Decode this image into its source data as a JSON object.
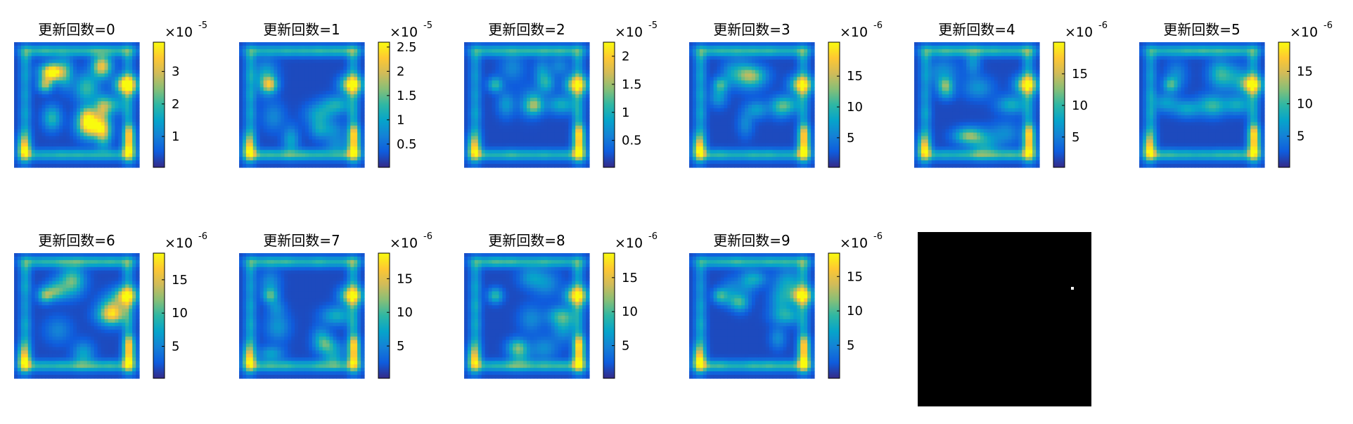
{
  "chart_data": {
    "type": "heatmap",
    "colormap": "parula",
    "colors": {
      "parula": [
        "#352a87",
        "#0f5cdd",
        "#1481d6",
        "#06a4ca",
        "#2eb7a4",
        "#87bf77",
        "#d1bb59",
        "#fec832",
        "#f9fb0e"
      ],
      "background": "#ffffff",
      "axes_border": "#000000",
      "mask_bg": "#000000",
      "mask_dot": "#ffffff"
    },
    "panels": [
      {
        "title": "更新回数=0",
        "exponent_label": "×10",
        "exponent": "-5",
        "clim": [
          0.05,
          3.9
        ],
        "ticks": [
          "1",
          "2",
          "3"
        ],
        "tick_values": [
          1,
          2,
          3
        ],
        "hotspot": 1.0
      },
      {
        "title": "更新回数=1",
        "exponent_label": "×10",
        "exponent": "-5",
        "clim": [
          0.02,
          2.6
        ],
        "ticks": [
          "0.5",
          "1",
          "1.5",
          "2",
          "2.5"
        ],
        "tick_values": [
          0.5,
          1,
          1.5,
          2,
          2.5
        ],
        "hotspot": 0.85
      },
      {
        "title": "更新回数=2",
        "exponent_label": "×10",
        "exponent": "-5",
        "clim": [
          0.02,
          2.25
        ],
        "ticks": [
          "0.5",
          "1",
          "1.5",
          "2"
        ],
        "tick_values": [
          0.5,
          1,
          1.5,
          2
        ],
        "hotspot": 0.8
      },
      {
        "title": "更新回数=3",
        "exponent_label": "×10",
        "exponent": "-6",
        "clim": [
          0.2,
          20.5
        ],
        "ticks": [
          "5",
          "10",
          "15"
        ],
        "tick_values": [
          5,
          10,
          15
        ],
        "hotspot": 0.8
      },
      {
        "title": "更新回数=4",
        "exponent_label": "×10",
        "exponent": "-6",
        "clim": [
          0.2,
          20.0
        ],
        "ticks": [
          "5",
          "10",
          "15"
        ],
        "tick_values": [
          5,
          10,
          15
        ],
        "hotspot": 0.8
      },
      {
        "title": "更新回数=5",
        "exponent_label": "×10",
        "exponent": "-6",
        "clim": [
          0.2,
          19.5
        ],
        "ticks": [
          "5",
          "10",
          "15"
        ],
        "tick_values": [
          5,
          10,
          15
        ],
        "hotspot": 0.8
      },
      {
        "title": "更新回数=6",
        "exponent_label": "×10",
        "exponent": "-6",
        "clim": [
          0.2,
          19.0
        ],
        "ticks": [
          "5",
          "10",
          "15"
        ],
        "tick_values": [
          5,
          10,
          15
        ],
        "hotspot": 0.8
      },
      {
        "title": "更新回数=7",
        "exponent_label": "×10",
        "exponent": "-6",
        "clim": [
          0.2,
          18.8
        ],
        "ticks": [
          "5",
          "10",
          "15"
        ],
        "tick_values": [
          5,
          10,
          15
        ],
        "hotspot": 0.8
      },
      {
        "title": "更新回数=8",
        "exponent_label": "×10",
        "exponent": "-6",
        "clim": [
          0.2,
          18.6
        ],
        "ticks": [
          "5",
          "10",
          "15"
        ],
        "tick_values": [
          5,
          10,
          15
        ],
        "hotspot": 0.8
      },
      {
        "title": "更新回数=9",
        "exponent_label": "×10",
        "exponent": "-6",
        "clim": [
          0.2,
          18.4
        ],
        "ticks": [
          "5",
          "10",
          "15"
        ],
        "tick_values": [
          5,
          10,
          15
        ],
        "hotspot": 0.8
      }
    ],
    "mask_panel": {
      "type": "binary image",
      "background_value": 0,
      "dot_value": 1,
      "dot_location": "upper right"
    }
  }
}
